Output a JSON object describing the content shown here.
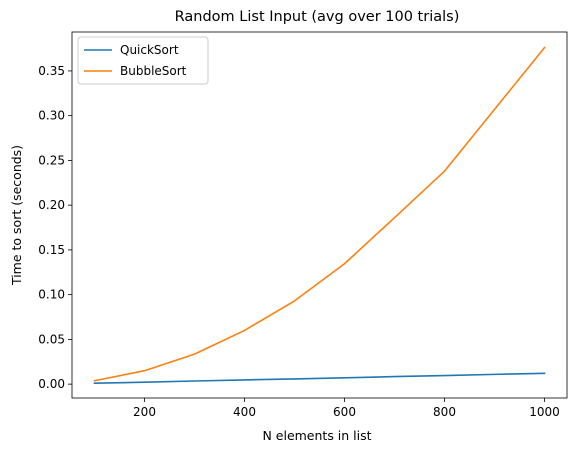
{
  "chart_data": {
    "type": "line",
    "title": "Random List Input (avg over 100 trials)",
    "xlabel": "N elements in list",
    "ylabel": "Time to sort (seconds)",
    "x": [
      100,
      200,
      300,
      400,
      500,
      600,
      700,
      800,
      900,
      1000
    ],
    "xlim": [
      55,
      1045
    ],
    "ylim": [
      -0.0155,
      0.3935
    ],
    "xticks": [
      200,
      400,
      600,
      800,
      1000
    ],
    "xtick_labels": [
      "200",
      "400",
      "600",
      "800",
      "1000"
    ],
    "yticks": [
      0.0,
      0.05,
      0.1,
      0.15,
      0.2,
      0.25,
      0.3,
      0.35
    ],
    "ytick_labels": [
      "0.00",
      "0.05",
      "0.10",
      "0.15",
      "0.20",
      "0.25",
      "0.30",
      "0.35"
    ],
    "grid": false,
    "legend_position": "top-left",
    "series": [
      {
        "name": "QuickSort",
        "color": "#1f77b4",
        "values": [
          0.001,
          0.0022,
          0.0035,
          0.0047,
          0.0058,
          0.0071,
          0.0084,
          0.0096,
          0.0109,
          0.0121
        ]
      },
      {
        "name": "BubbleSort",
        "color": "#ff7f0e",
        "values": [
          0.0038,
          0.015,
          0.0335,
          0.06,
          0.093,
          0.1345,
          0.186,
          0.238,
          0.307,
          0.376
        ]
      }
    ]
  }
}
